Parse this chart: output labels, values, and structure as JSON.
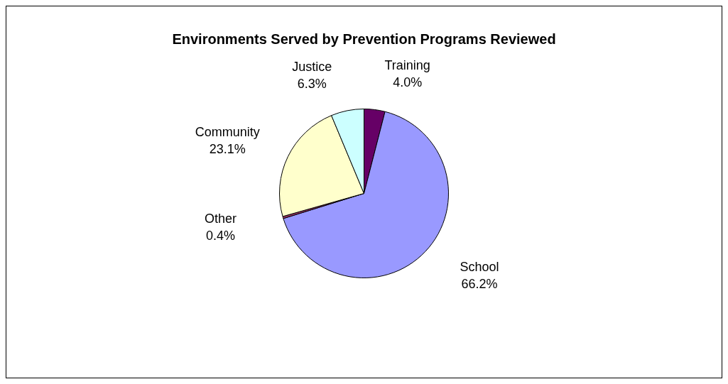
{
  "chart_data": {
    "type": "pie",
    "title": "Environments Served by Prevention Programs Reviewed",
    "categories": [
      "Training",
      "School",
      "Other",
      "Community",
      "Justice"
    ],
    "values": [
      4.0,
      66.2,
      0.4,
      23.1,
      6.3
    ],
    "value_labels": [
      "4.0%",
      "66.2%",
      "0.4%",
      "23.1%",
      "6.3%"
    ],
    "colors": [
      "#660066",
      "#9999ff",
      "#993366",
      "#ffffcc",
      "#ccffff"
    ],
    "legend": false
  }
}
